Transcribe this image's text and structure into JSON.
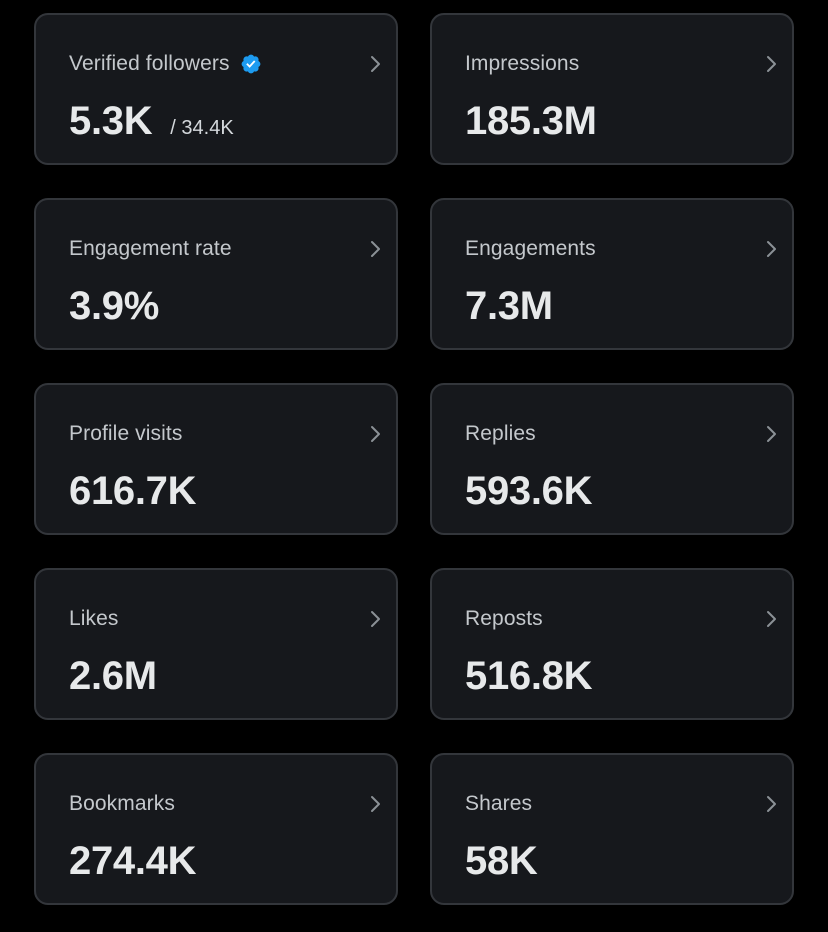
{
  "colors": {
    "background": "#000000",
    "card_background": "#16181c",
    "card_border": "#33363b",
    "verified_badge": "#1d9bf0",
    "label_text": "#c4c8cc",
    "value_text": "#e7e9ea"
  },
  "metrics": [
    {
      "label": "Verified followers",
      "value": "5.3K",
      "secondary": "/ 34.4K",
      "icon": "verified-badge-icon"
    },
    {
      "label": "Impressions",
      "value": "185.3M"
    },
    {
      "label": "Engagement rate",
      "value": "3.9%"
    },
    {
      "label": "Engagements",
      "value": "7.3M"
    },
    {
      "label": "Profile visits",
      "value": "616.7K"
    },
    {
      "label": "Replies",
      "value": "593.6K"
    },
    {
      "label": "Likes",
      "value": "2.6M"
    },
    {
      "label": "Reposts",
      "value": "516.8K"
    },
    {
      "label": "Bookmarks",
      "value": "274.4K"
    },
    {
      "label": "Shares",
      "value": "58K"
    }
  ]
}
